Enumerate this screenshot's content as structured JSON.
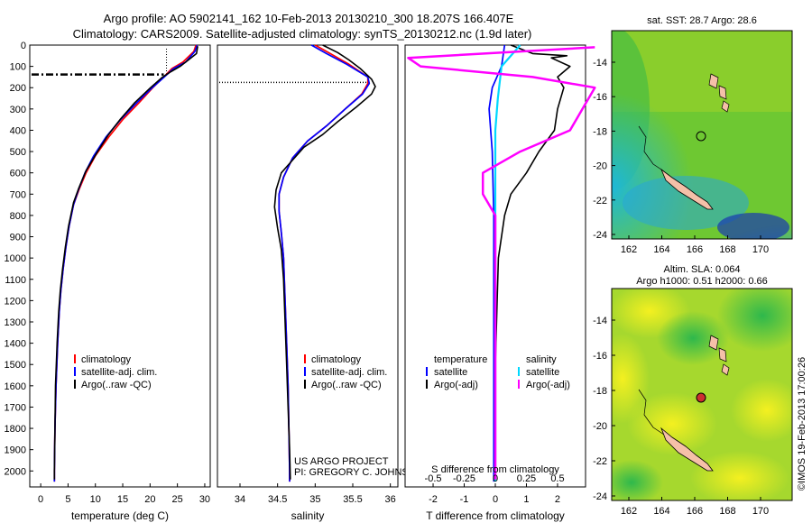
{
  "header": {
    "line1": "Argo profile: AO 5902141_162 10-Feb-2013 20130210_300 18.207S 166.407E",
    "line2": "Climatology: CARS2009. Satellite-adjusted climatology: synTS_20130212.nc (1.9d later)"
  },
  "colors": {
    "climatology": "#ff0000",
    "satellite": "#0000ff",
    "argo": "#000000",
    "cyan": "#00d8ff",
    "magenta": "#ff00ff"
  },
  "chart_data": [
    {
      "id": "temperature",
      "type": "line",
      "xlabel": "temperature (deg C)",
      "ylabel": "",
      "xlim": [
        -2,
        31
      ],
      "ylim": [
        0,
        2075
      ],
      "xticks": [
        0,
        5,
        10,
        15,
        20,
        25,
        30
      ],
      "yticks": [
        0,
        100,
        200,
        300,
        400,
        500,
        600,
        700,
        800,
        900,
        1000,
        1100,
        1200,
        1300,
        1400,
        1500,
        1600,
        1700,
        1800,
        1900,
        2000
      ],
      "legend": [
        "climatology",
        "satellite-adj. clim.",
        "Argo(..raw -QC)"
      ],
      "series": [
        {
          "name": "climatology",
          "color": "red",
          "points": [
            [
              28.4,
              0
            ],
            [
              28.0,
              30
            ],
            [
              26.0,
              80
            ],
            [
              24.0,
              110
            ],
            [
              22.5,
              150
            ],
            [
              20.5,
              200
            ],
            [
              18.0,
              270
            ],
            [
              15.0,
              350
            ],
            [
              12.5,
              430
            ],
            [
              10.0,
              520
            ],
            [
              8.3,
              600
            ],
            [
              7.0,
              680
            ],
            [
              6.0,
              750
            ],
            [
              5.2,
              850
            ],
            [
              4.6,
              950
            ],
            [
              4.1,
              1050
            ],
            [
              3.7,
              1150
            ],
            [
              3.4,
              1250
            ],
            [
              3.1,
              1400
            ],
            [
              2.8,
              1600
            ],
            [
              2.6,
              1800
            ],
            [
              2.5,
              2000
            ],
            [
              2.5,
              2050
            ]
          ]
        },
        {
          "name": "satellite-adj. clim.",
          "color": "blue",
          "points": [
            [
              28.6,
              0
            ],
            [
              28.2,
              30
            ],
            [
              26.5,
              80
            ],
            [
              24.3,
              110
            ],
            [
              22.6,
              150
            ],
            [
              20.4,
              200
            ],
            [
              17.6,
              270
            ],
            [
              14.6,
              350
            ],
            [
              12.0,
              430
            ],
            [
              9.7,
              520
            ],
            [
              8.1,
              600
            ],
            [
              6.9,
              680
            ],
            [
              6.0,
              750
            ],
            [
              5.2,
              850
            ],
            [
              4.6,
              950
            ],
            [
              4.1,
              1050
            ],
            [
              3.7,
              1150
            ],
            [
              3.4,
              1250
            ],
            [
              3.1,
              1400
            ],
            [
              2.8,
              1600
            ],
            [
              2.6,
              1800
            ],
            [
              2.5,
              2000
            ],
            [
              2.5,
              2050
            ]
          ]
        },
        {
          "name": "Argo(..raw -QC)",
          "color": "black",
          "points": [
            [
              28.7,
              5
            ],
            [
              28.5,
              40
            ],
            [
              27.0,
              70
            ],
            [
              25.5,
              100
            ],
            [
              23.8,
              125
            ],
            [
              22.3,
              150
            ],
            [
              20.1,
              200
            ],
            [
              17.2,
              270
            ],
            [
              14.5,
              350
            ],
            [
              12.4,
              420
            ],
            [
              10.4,
              500
            ],
            [
              8.3,
              590
            ],
            [
              7.0,
              670
            ],
            [
              6.0,
              740
            ],
            [
              5.1,
              850
            ],
            [
              4.5,
              950
            ],
            [
              4.0,
              1050
            ],
            [
              3.6,
              1150
            ],
            [
              3.3,
              1250
            ],
            [
              3.0,
              1400
            ],
            [
              2.7,
              1600
            ],
            [
              2.6,
              1800
            ],
            [
              2.5,
              2000
            ],
            [
              2.5,
              2040
            ]
          ]
        }
      ],
      "mld_marker_depth": 138
    },
    {
      "id": "salinity",
      "type": "line",
      "xlabel": "salinity",
      "xlim": [
        33.7,
        36.1
      ],
      "ylim": [
        0,
        2075
      ],
      "xticks": [
        34,
        34.5,
        35,
        35.5,
        36
      ],
      "legend": [
        "climatology",
        "satellite-adj. clim.",
        "Argo(..raw -QC)"
      ],
      "series": [
        {
          "name": "climatology",
          "color": "red",
          "points": [
            [
              35.0,
              0
            ],
            [
              35.2,
              40
            ],
            [
              35.45,
              90
            ],
            [
              35.7,
              150
            ],
            [
              35.7,
              180
            ],
            [
              35.62,
              230
            ],
            [
              35.4,
              300
            ],
            [
              35.15,
              380
            ],
            [
              34.9,
              450
            ],
            [
              34.7,
              530
            ],
            [
              34.58,
              620
            ],
            [
              34.52,
              700
            ],
            [
              34.52,
              780
            ],
            [
              34.55,
              880
            ],
            [
              34.58,
              1000
            ],
            [
              34.6,
              1200
            ],
            [
              34.62,
              1400
            ],
            [
              34.64,
              1600
            ],
            [
              34.65,
              1800
            ],
            [
              34.66,
              2000
            ],
            [
              34.66,
              2050
            ]
          ]
        },
        {
          "name": "satellite-adj. clim.",
          "color": "blue",
          "points": [
            [
              34.95,
              0
            ],
            [
              35.15,
              40
            ],
            [
              35.42,
              90
            ],
            [
              35.7,
              150
            ],
            [
              35.72,
              180
            ],
            [
              35.63,
              230
            ],
            [
              35.4,
              300
            ],
            [
              35.15,
              380
            ],
            [
              34.9,
              450
            ],
            [
              34.7,
              530
            ],
            [
              34.58,
              620
            ],
            [
              34.52,
              700
            ],
            [
              34.52,
              780
            ],
            [
              34.55,
              880
            ],
            [
              34.58,
              1000
            ],
            [
              34.6,
              1200
            ],
            [
              34.62,
              1400
            ],
            [
              34.64,
              1600
            ],
            [
              34.65,
              1800
            ],
            [
              34.66,
              2000
            ],
            [
              34.66,
              2050
            ]
          ]
        },
        {
          "name": "Argo(..raw -QC)",
          "color": "black",
          "points": [
            [
              35.1,
              0
            ],
            [
              35.3,
              35
            ],
            [
              35.45,
              70
            ],
            [
              35.6,
              110
            ],
            [
              35.75,
              160
            ],
            [
              35.8,
              195
            ],
            [
              35.75,
              230
            ],
            [
              35.55,
              290
            ],
            [
              35.3,
              360
            ],
            [
              35.1,
              420
            ],
            [
              34.85,
              480
            ],
            [
              34.7,
              540
            ],
            [
              34.55,
              600
            ],
            [
              34.48,
              680
            ],
            [
              34.46,
              760
            ],
            [
              34.5,
              860
            ],
            [
              34.55,
              960
            ],
            [
              34.58,
              1100
            ],
            [
              34.6,
              1300
            ],
            [
              34.62,
              1500
            ],
            [
              34.64,
              1700
            ],
            [
              34.66,
              1900
            ],
            [
              34.67,
              2040
            ]
          ]
        }
      ],
      "mld_marker_depth": 175
    },
    {
      "id": "difference",
      "type": "line",
      "xlabel": "T difference from climatology",
      "xlabel_top": "S difference from climatology",
      "xlim": [
        -2.9,
        2.9
      ],
      "ylim": [
        0,
        2075
      ],
      "xticks": [
        -2,
        -1,
        0,
        1,
        2
      ],
      "xticks_top": [
        "-0.5",
        "-0.25",
        "0",
        "0.25",
        "0.5"
      ],
      "legend_header_left": "temperature",
      "legend_header_right": "salinity",
      "legend_left": [
        "satellite",
        "Argo(-adj)"
      ],
      "legend_right": [
        "satellite",
        "Argo(-adj)"
      ],
      "series": [
        {
          "name": "T satellite",
          "color": "blue",
          "points": [
            [
              0.3,
              0
            ],
            [
              0.2,
              100
            ],
            [
              -0.1,
              200
            ],
            [
              -0.2,
              300
            ],
            [
              -0.1,
              500
            ],
            [
              -0.05,
              800
            ],
            [
              -0.05,
              2050
            ]
          ]
        },
        {
          "name": "T Argo(-adj)",
          "color": "black",
          "points": [
            [
              0.5,
              0
            ],
            [
              1.2,
              40
            ],
            [
              2.3,
              50
            ],
            [
              1.8,
              60
            ],
            [
              2.4,
              100
            ],
            [
              2.0,
              150
            ],
            [
              2.2,
              200
            ],
            [
              2.0,
              300
            ],
            [
              1.9,
              400
            ],
            [
              1.4,
              500
            ],
            [
              1.0,
              600
            ],
            [
              0.5,
              700
            ],
            [
              0.3,
              800
            ],
            [
              0.1,
              1000
            ],
            [
              0.0,
              1500
            ],
            [
              0.0,
              2040
            ]
          ]
        },
        {
          "name": "S satellite",
          "color": "cyan",
          "points": [
            [
              0.2,
              0
            ],
            [
              0.05,
              100
            ],
            [
              0.02,
              250
            ],
            [
              0.0,
              400
            ],
            [
              0.0,
              2050
            ]
          ]
        },
        {
          "name": "S Argo(-adj)",
          "color": "magenta",
          "points": [
            [
              0.8,
              10
            ],
            [
              -0.7,
              60
            ],
            [
              -0.6,
              100
            ],
            [
              0.3,
              150
            ],
            [
              0.8,
              200
            ],
            [
              0.7,
              300
            ],
            [
              0.6,
              400
            ],
            [
              0.2,
              500
            ],
            [
              -0.1,
              600
            ],
            [
              -0.1,
              700
            ],
            [
              0.0,
              800
            ],
            [
              0.0,
              2040
            ]
          ]
        }
      ]
    }
  ],
  "maps": {
    "sst_title": "sat. SST: 28.7 Argo: 28.6",
    "sla_title1": "Altim. SLA: 0.064",
    "sla_title2": "Argo h1000: 0.51 h2000: 0.66",
    "lat_ticks": [
      "-14",
      "-16",
      "-18",
      "-20",
      "-22",
      "-24"
    ],
    "lon_ticks": [
      "162",
      "164",
      "166",
      "168",
      "170"
    ]
  },
  "annotations": {
    "project": "US ARGO PROJECT",
    "pi": "PI: GREGORY C. JOHNSON",
    "imos": "©IMOS 19-Feb-2013 17:00:26"
  }
}
